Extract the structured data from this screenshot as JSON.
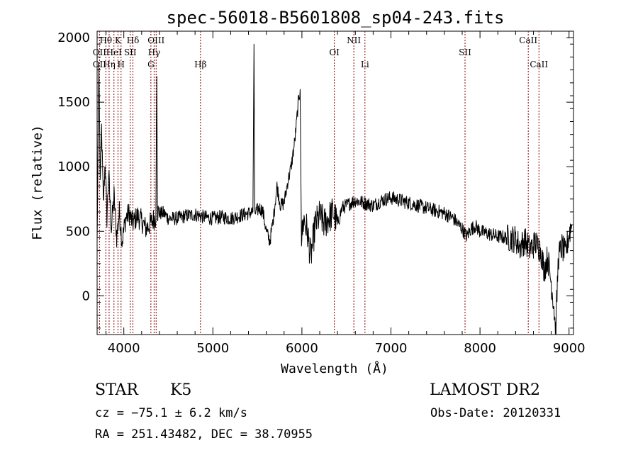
{
  "chart_data": {
    "type": "line",
    "title": "spec-56018-B5601808_sp04-243.fits",
    "xlabel": "Wavelength (Å)",
    "ylabel": "Flux (relative)",
    "xlim": [
      3700,
      9050
    ],
    "ylim": [
      -300,
      2050
    ],
    "xticks": [
      4000,
      5000,
      6000,
      7000,
      8000,
      9000
    ],
    "yticks": [
      0,
      500,
      1000,
      1500,
      2000
    ],
    "grid": false,
    "line_color": "#000000",
    "marker_color": "#8b0000",
    "spectral_lines": [
      {
        "label": "Hθ",
        "x": 3798,
        "row": 1
      },
      {
        "label": "K",
        "x": 3934,
        "row": 1
      },
      {
        "label": "Hδ",
        "x": 4102,
        "row": 1
      },
      {
        "label": "OIII",
        "x": 4363,
        "row": 1
      },
      {
        "label": "NII",
        "x": 6583,
        "row": 1
      },
      {
        "label": "CaII",
        "x": 8542,
        "row": 1
      },
      {
        "label": "OII",
        "x": 3727,
        "row": 2
      },
      {
        "label": "HeI",
        "x": 3889,
        "row": 2
      },
      {
        "label": "SII",
        "x": 4072,
        "row": 2
      },
      {
        "label": "Hγ",
        "x": 4340,
        "row": 2
      },
      {
        "label": "OI",
        "x": 6364,
        "row": 2
      },
      {
        "label": "SII",
        "x": 7832,
        "row": 2
      },
      {
        "label": "OII",
        "x": 3727,
        "row": 3
      },
      {
        "label": "Hη",
        "x": 3835,
        "row": 3
      },
      {
        "label": "H",
        "x": 3969,
        "row": 3
      },
      {
        "label": "G",
        "x": 4304,
        "row": 3
      },
      {
        "label": "Hβ",
        "x": 4861,
        "row": 3
      },
      {
        "label": "Li",
        "x": 6708,
        "row": 3
      },
      {
        "label": "CaII",
        "x": 8662,
        "row": 3
      }
    ],
    "spectrum_anchors": [
      [
        3700,
        400
      ],
      [
        3720,
        1780
      ],
      [
        3735,
        900
      ],
      [
        3750,
        1300
      ],
      [
        3770,
        700
      ],
      [
        3790,
        1050
      ],
      [
        3810,
        600
      ],
      [
        3830,
        950
      ],
      [
        3860,
        520
      ],
      [
        3890,
        780
      ],
      [
        3920,
        450
      ],
      [
        3950,
        650
      ],
      [
        3980,
        420
      ],
      [
        4020,
        600
      ],
      [
        4060,
        640
      ],
      [
        4100,
        560
      ],
      [
        4150,
        620
      ],
      [
        4200,
        580
      ],
      [
        4250,
        520
      ],
      [
        4300,
        560
      ],
      [
        4340,
        600
      ],
      [
        4360,
        600
      ],
      [
        4370,
        1700
      ],
      [
        4378,
        650
      ],
      [
        4400,
        640
      ],
      [
        4450,
        640
      ],
      [
        4500,
        600
      ],
      [
        4600,
        600
      ],
      [
        4700,
        620
      ],
      [
        4800,
        630
      ],
      [
        4900,
        610
      ],
      [
        5000,
        600
      ],
      [
        5100,
        610
      ],
      [
        5200,
        600
      ],
      [
        5300,
        620
      ],
      [
        5400,
        640
      ],
      [
        5450,
        650
      ],
      [
        5462,
        1950
      ],
      [
        5470,
        640
      ],
      [
        5520,
        680
      ],
      [
        5560,
        660
      ],
      [
        5600,
        500
      ],
      [
        5640,
        420
      ],
      [
        5680,
        600
      ],
      [
        5720,
        850
      ],
      [
        5760,
        700
      ],
      [
        5800,
        720
      ],
      [
        5840,
        880
      ],
      [
        5880,
        1000
      ],
      [
        5920,
        1200
      ],
      [
        5960,
        1500
      ],
      [
        5980,
        1600
      ],
      [
        5995,
        420
      ],
      [
        6020,
        600
      ],
      [
        6060,
        500
      ],
      [
        6100,
        300
      ],
      [
        6150,
        550
      ],
      [
        6200,
        620
      ],
      [
        6250,
        560
      ],
      [
        6300,
        600
      ],
      [
        6350,
        650
      ],
      [
        6400,
        550
      ],
      [
        6450,
        680
      ],
      [
        6500,
        700
      ],
      [
        6550,
        720
      ],
      [
        6600,
        740
      ],
      [
        6700,
        720
      ],
      [
        6800,
        700
      ],
      [
        6900,
        740
      ],
      [
        7000,
        760
      ],
      [
        7100,
        740
      ],
      [
        7200,
        720
      ],
      [
        7300,
        700
      ],
      [
        7400,
        680
      ],
      [
        7500,
        660
      ],
      [
        7600,
        640
      ],
      [
        7700,
        600
      ],
      [
        7800,
        520
      ],
      [
        7850,
        460
      ],
      [
        7900,
        520
      ],
      [
        7950,
        540
      ],
      [
        8000,
        500
      ],
      [
        8100,
        480
      ],
      [
        8200,
        460
      ],
      [
        8300,
        450
      ],
      [
        8400,
        440
      ],
      [
        8450,
        380
      ],
      [
        8500,
        430
      ],
      [
        8560,
        360
      ],
      [
        8620,
        410
      ],
      [
        8680,
        360
      ],
      [
        8720,
        200
      ],
      [
        8760,
        300
      ],
      [
        8800,
        100
      ],
      [
        8830,
        -80
      ],
      [
        8850,
        -280
      ],
      [
        8880,
        300
      ],
      [
        8920,
        380
      ],
      [
        8960,
        320
      ],
      [
        9000,
        480
      ],
      [
        9030,
        550
      ]
    ]
  },
  "info": {
    "class_label": "STAR",
    "subclass_label": "K5",
    "survey": "LAMOST DR2",
    "cz": "cz = −75.1 ± 6.2 km/s",
    "obs_date": "Obs-Date: 20120331",
    "coords": "RA = 251.43482, DEC =  38.70955"
  }
}
